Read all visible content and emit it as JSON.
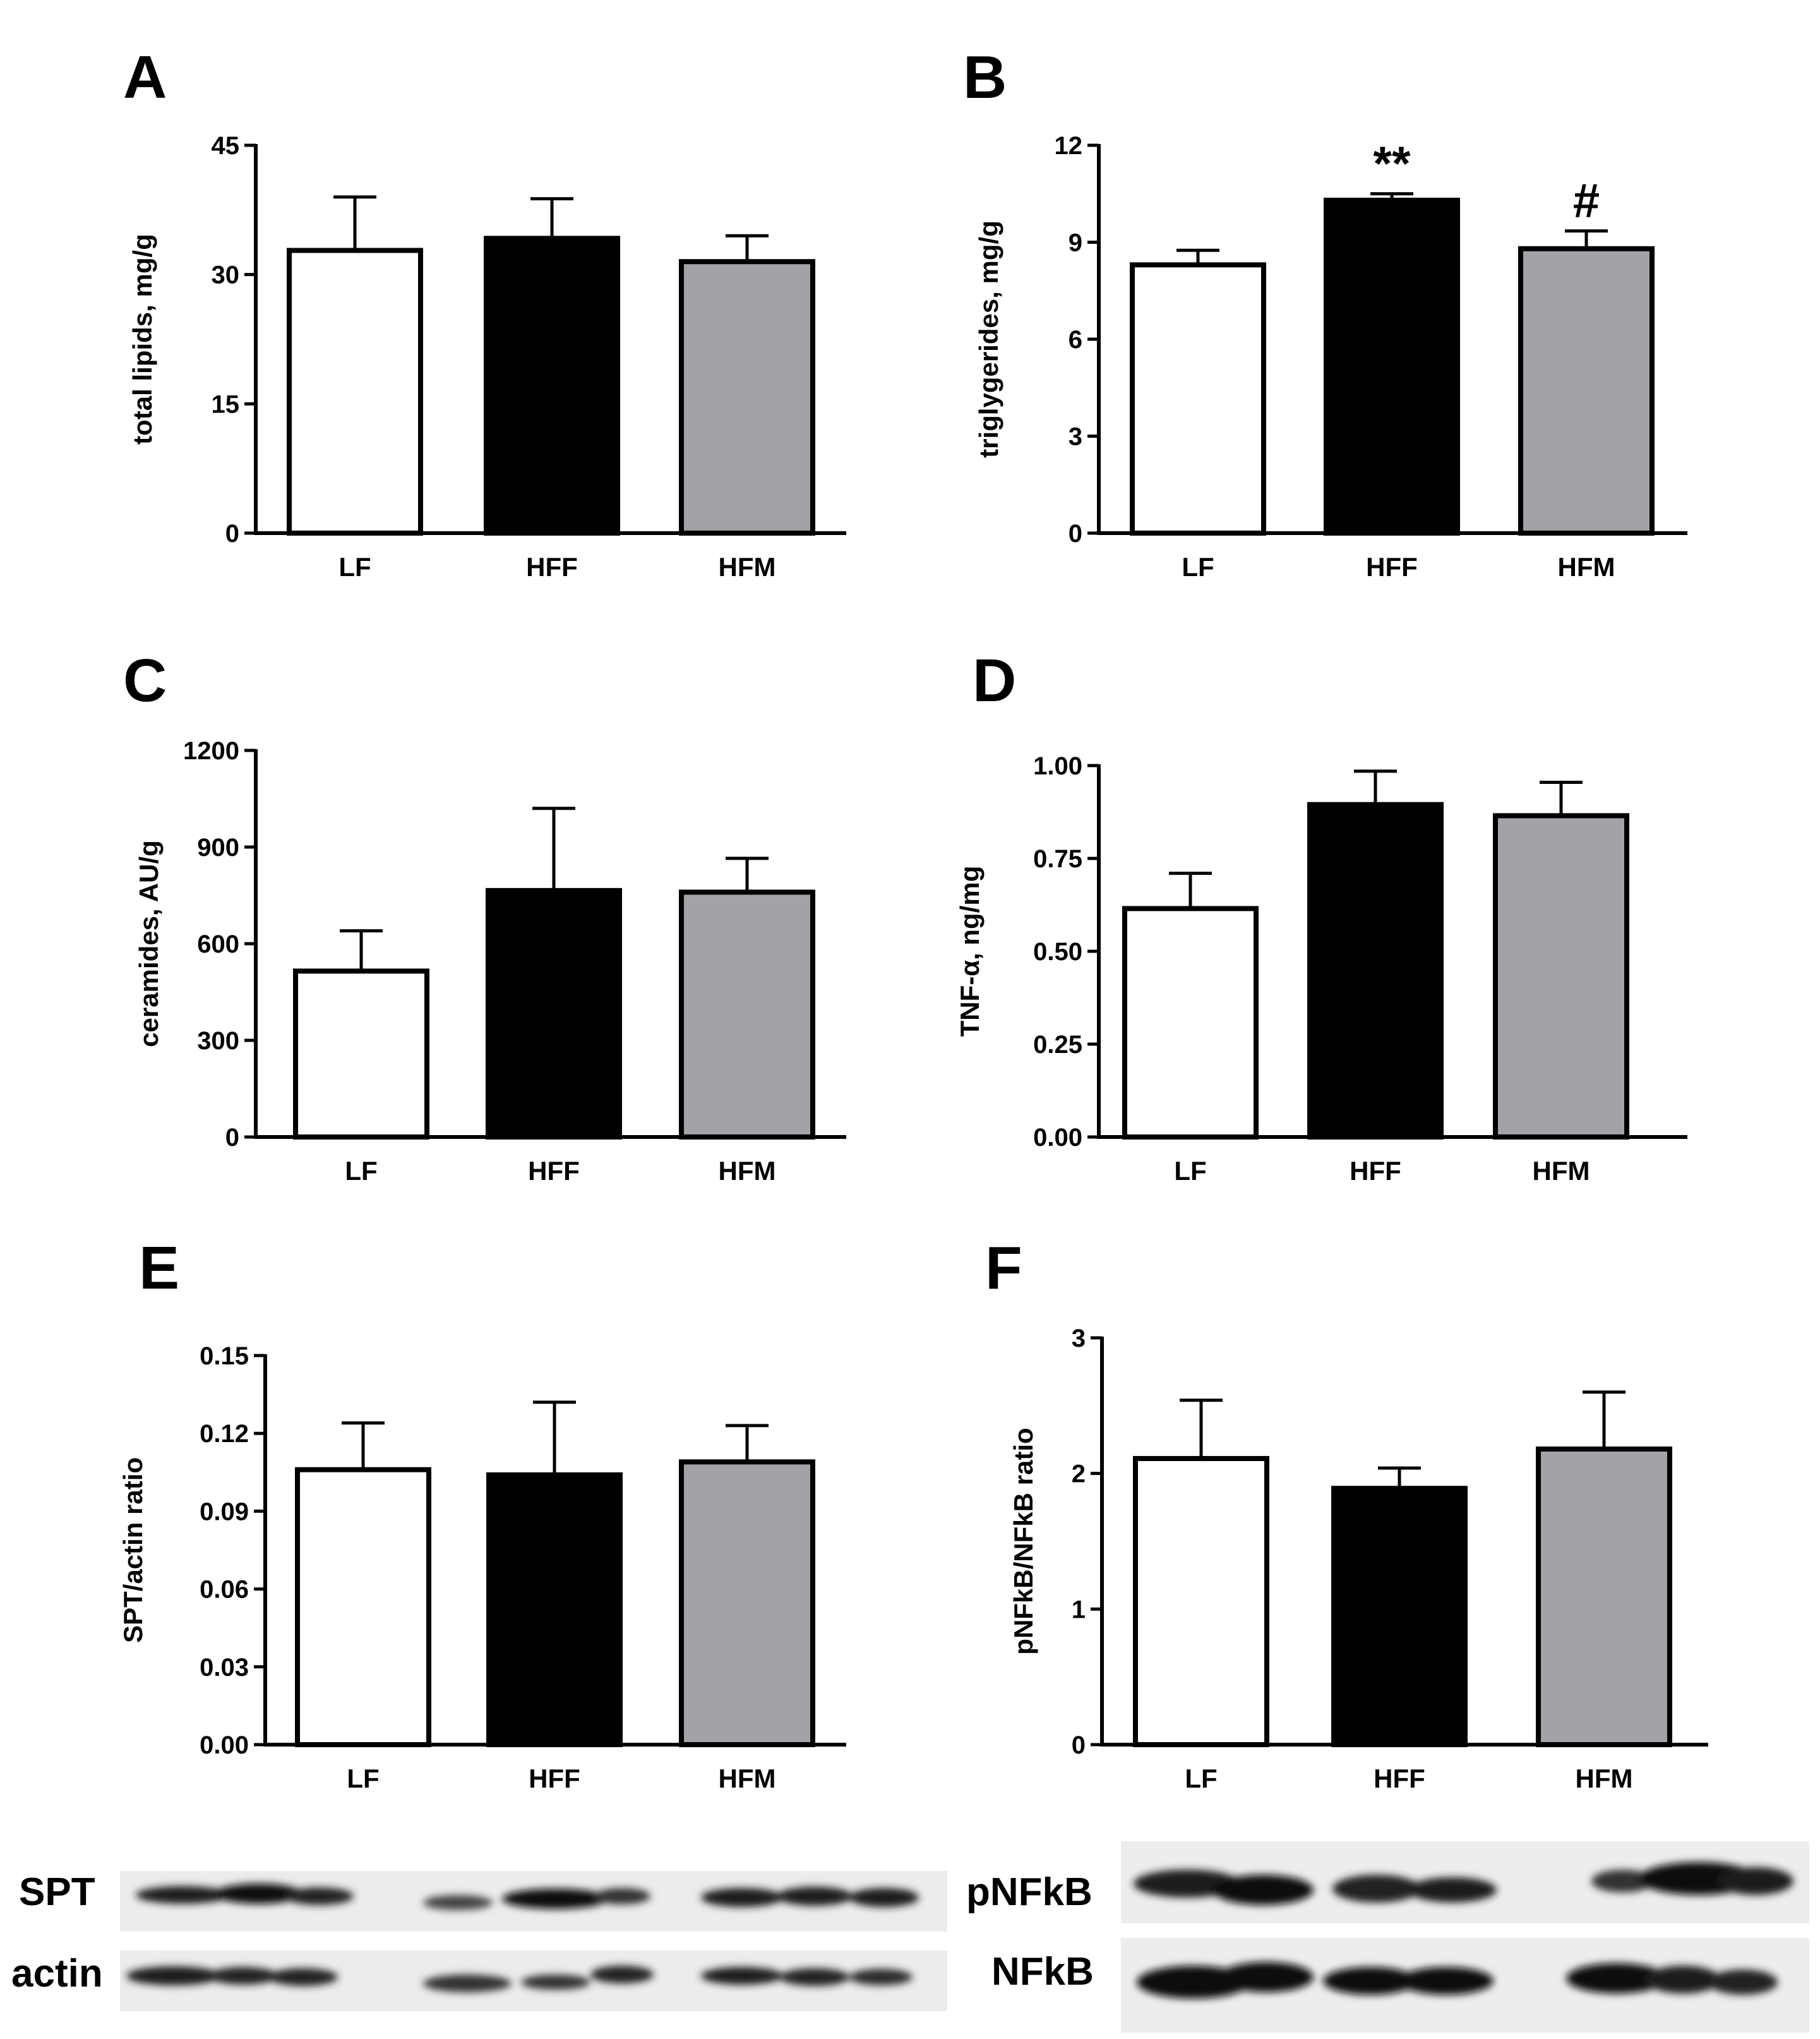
{
  "colors": {
    "LF": "#ffffff",
    "HFF": "#000000",
    "HFM": "#a3a2a7",
    "bar_stroke": "#000000",
    "axis": "#000000"
  },
  "chart_data": [
    {
      "panel": "A",
      "type": "bar",
      "categories": [
        "LF",
        "HFF",
        "HFM"
      ],
      "values": [
        32.8,
        34.2,
        31.5
      ],
      "errors": [
        6.2,
        4.6,
        3.0
      ],
      "ylabel": "total lipids, mg/g",
      "ylim": [
        0,
        45
      ],
      "yticks": [
        "0",
        "15",
        "30",
        "45"
      ],
      "significance": [
        "",
        "",
        ""
      ]
    },
    {
      "panel": "B",
      "type": "bar",
      "categories": [
        "LF",
        "HFF",
        "HFM"
      ],
      "values": [
        8.3,
        10.3,
        8.8
      ],
      "errors": [
        0.45,
        0.2,
        0.55
      ],
      "ylabel": "triglygerides, mg/g",
      "ylim": [
        0,
        12
      ],
      "yticks": [
        "0",
        "3",
        "6",
        "9",
        "12"
      ],
      "significance": [
        "",
        "**",
        "#"
      ]
    },
    {
      "panel": "C",
      "type": "bar",
      "categories": [
        "LF",
        "HFF",
        "HFM"
      ],
      "values": [
        515,
        765,
        760
      ],
      "errors": [
        125,
        255,
        105
      ],
      "ylabel": "ceramides, AU/g",
      "ylim": [
        0,
        1200
      ],
      "yticks": [
        "0",
        "300",
        "600",
        "900",
        "1200"
      ],
      "significance": [
        "",
        "",
        ""
      ]
    },
    {
      "panel": "D",
      "type": "bar",
      "categories": [
        "LF",
        "HFF",
        "HFM"
      ],
      "values": [
        0.615,
        0.895,
        0.865
      ],
      "errors": [
        0.095,
        0.09,
        0.09
      ],
      "ylabel": "TNF-α, ng/mg",
      "ylim": [
        0,
        1.0
      ],
      "yticks": [
        "0.00",
        "0.25",
        "0.50",
        "0.75",
        "1.00"
      ],
      "significance": [
        "",
        "",
        ""
      ]
    },
    {
      "panel": "E",
      "type": "bar",
      "categories": [
        "LF",
        "HFF",
        "HFM"
      ],
      "values": [
        0.106,
        0.104,
        0.109
      ],
      "errors": [
        0.018,
        0.028,
        0.014
      ],
      "ylabel": "SPT/actin ratio",
      "ylim": [
        0,
        0.15
      ],
      "yticks": [
        "0.00",
        "0.03",
        "0.06",
        "0.09",
        "0.12",
        "0.15"
      ],
      "significance": [
        "",
        "",
        ""
      ]
    },
    {
      "panel": "F",
      "type": "bar",
      "categories": [
        "LF",
        "HFF",
        "HFM"
      ],
      "values": [
        2.11,
        1.89,
        2.18
      ],
      "errors": [
        0.43,
        0.15,
        0.42
      ],
      "ylabel": "pNFkB/NFkB ratio",
      "ylim": [
        0,
        3
      ],
      "yticks": [
        "0",
        "1",
        "2",
        "3"
      ],
      "significance": [
        "",
        "",
        ""
      ]
    }
  ],
  "blots": {
    "left": {
      "rows": [
        "SPT",
        "actin"
      ]
    },
    "right": {
      "rows": [
        "pNFkB",
        "NFkB"
      ]
    }
  }
}
